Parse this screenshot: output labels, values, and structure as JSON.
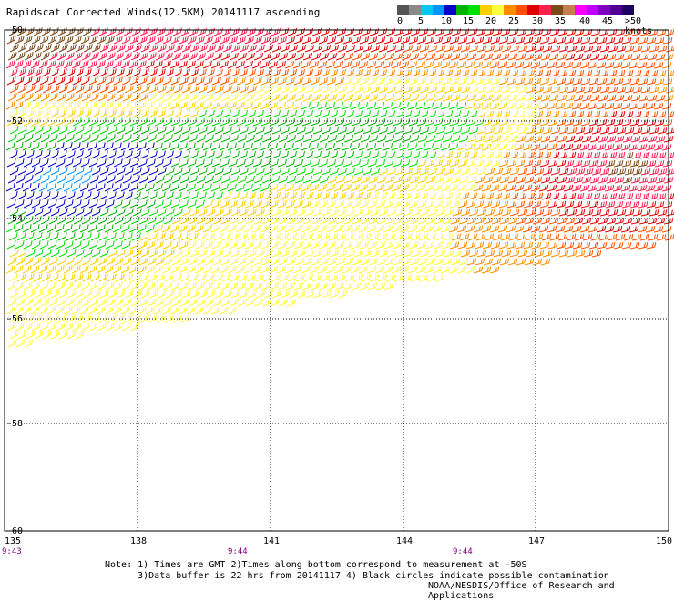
{
  "title": "Rapidscat Corrected Winds(12.5KM) 20141117 ascending",
  "legend": {
    "labels": [
      "0",
      "5",
      "10",
      "15",
      "20",
      "25",
      "30",
      "35",
      "40",
      "45",
      ">50 knots"
    ],
    "colors": [
      "#555555",
      "#8a8a8a",
      "#00c8f0",
      "#0096ff",
      "#0000c8",
      "#00b400",
      "#00e000",
      "#ffd000",
      "#ffff40",
      "#ff8c00",
      "#ff5000",
      "#e00000",
      "#ff2050",
      "#7a4a1a",
      "#c08050",
      "#ff00ff",
      "#c000ff",
      "#8000c0",
      "#500090",
      "#200060"
    ]
  },
  "map": {
    "lat_labels": [
      "-50",
      "-52",
      "-54",
      "-56",
      "-58",
      "-60"
    ],
    "lon_labels": [
      "135",
      "138",
      "141",
      "144",
      "147",
      "150"
    ],
    "time_labels": [
      "9:43",
      "9:44",
      "9:44"
    ]
  },
  "notes": [
    "Note: 1) Times are GMT 2)Times along bottom correspond to measurement at -50S",
    "      3)Data buffer is 22 hrs from 20141117 4) Black circles indicate possible contamination"
  ],
  "credit": "NOAA/NESDIS/Office of Research and Applications"
}
